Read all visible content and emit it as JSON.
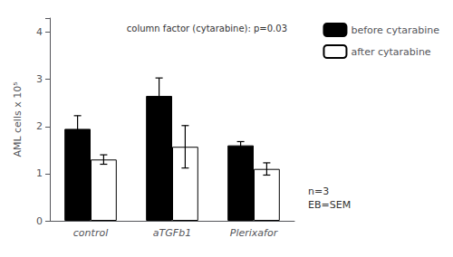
{
  "chart_data": {
    "type": "bar",
    "categories": [
      "control",
      "aTGFb1",
      "Plerixafor"
    ],
    "series": [
      {
        "name": "before cytarabine",
        "color": "#000000",
        "values": [
          1.95,
          2.65,
          1.6
        ],
        "errors": [
          0.28,
          0.38,
          0.08
        ]
      },
      {
        "name": "after cytarabine",
        "color": "#ffffff",
        "values": [
          1.3,
          1.57,
          1.1
        ],
        "errors": [
          0.1,
          0.45,
          0.13
        ]
      }
    ],
    "ylabel": "AML cells x 10⁵",
    "ylim": [
      0,
      4.3
    ],
    "yticks": [
      0,
      1,
      2,
      3,
      4
    ],
    "annotation": "column factor (cytarabine): p=0.03",
    "note": "n=3\nEB=SEM",
    "grid": false,
    "legend": "right"
  }
}
